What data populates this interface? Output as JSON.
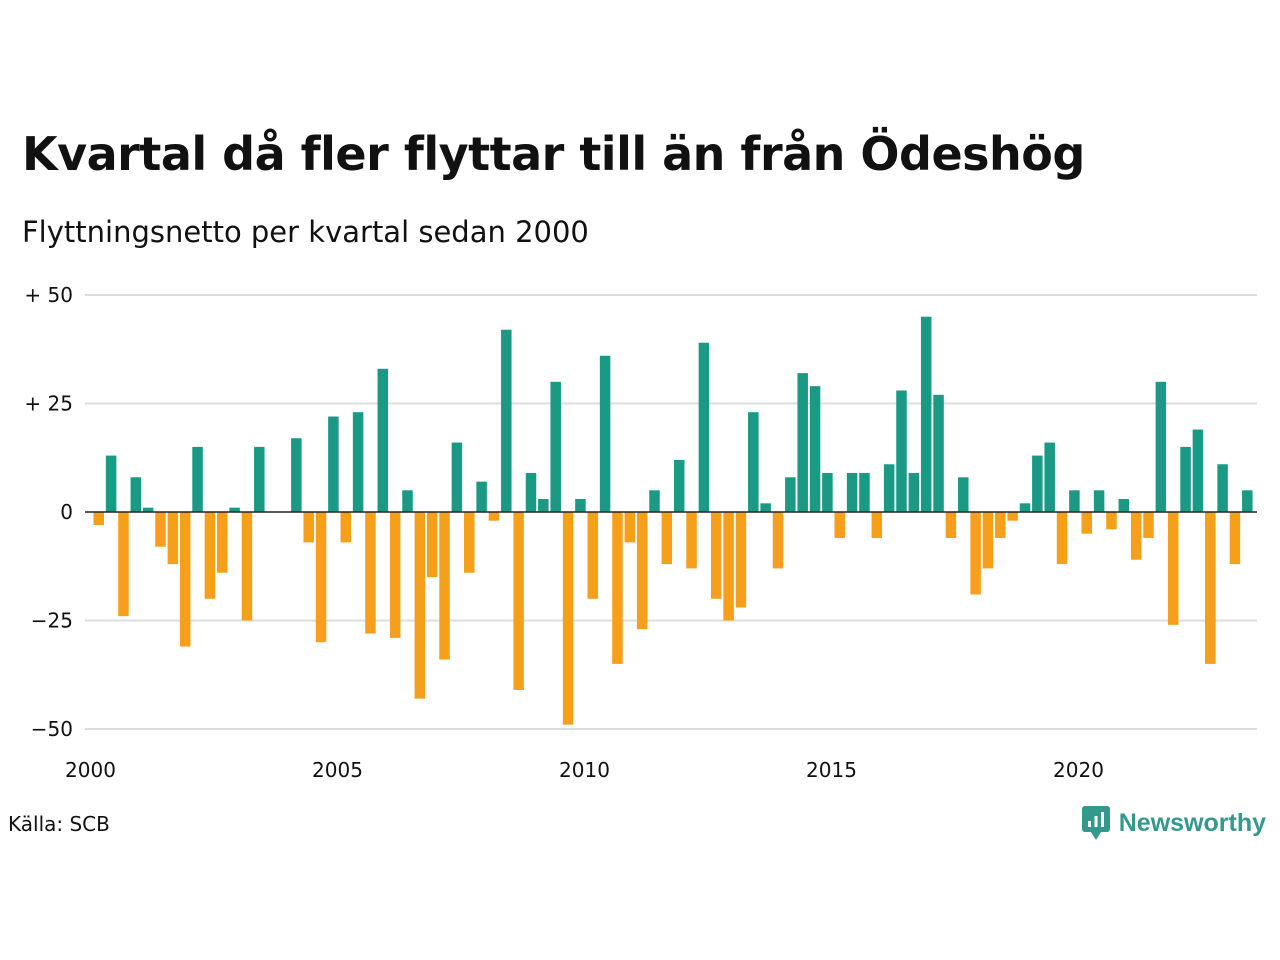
{
  "header": {
    "title": "Kvartal då fler flyttar till än från Ödeshög",
    "subtitle": "Flyttningsnetto per kvartal sedan 2000"
  },
  "footer": {
    "source": "Källa: SCB",
    "brand": "Newsworthy"
  },
  "colors": {
    "positive": "#1a9985",
    "negative": "#f59f1b",
    "grid": "#dddddd",
    "zero_line": "#222222",
    "brand": "#33998c"
  },
  "chart_data": {
    "type": "bar",
    "x_start_year": 2000,
    "periods_per_year": 4,
    "x_ticks": [
      2000,
      2005,
      2010,
      2015,
      2020
    ],
    "x_tick_labels": [
      "2000",
      "2005",
      "2010",
      "2015",
      "2020"
    ],
    "y_ticks": [
      50,
      25,
      0,
      -25,
      -50
    ],
    "y_tick_labels": [
      "+ 50",
      "+ 25",
      "0",
      "−25",
      "−50"
    ],
    "ylim": [
      -50,
      50
    ],
    "grid": true,
    "values": [
      -3,
      13,
      -24,
      8,
      1,
      -8,
      -12,
      -31,
      15,
      -20,
      -14,
      1,
      -25,
      15,
      0,
      0,
      17,
      -7,
      -30,
      22,
      -7,
      23,
      -28,
      33,
      -29,
      5,
      -43,
      -15,
      -34,
      16,
      -14,
      7,
      -2,
      42,
      -41,
      9,
      3,
      30,
      -49,
      3,
      -20,
      36,
      -35,
      -7,
      -27,
      5,
      -12,
      12,
      -13,
      39,
      -20,
      -25,
      -22,
      23,
      2,
      -13,
      8,
      32,
      29,
      9,
      -6,
      9,
      9,
      -6,
      11,
      28,
      9,
      45,
      27,
      -6,
      8,
      -19,
      -13,
      -6,
      -2,
      2,
      13,
      16,
      -12,
      5,
      -5,
      5,
      -4,
      3,
      -11,
      -6,
      30,
      -26,
      15,
      19,
      -35,
      11,
      -12,
      5
    ]
  }
}
